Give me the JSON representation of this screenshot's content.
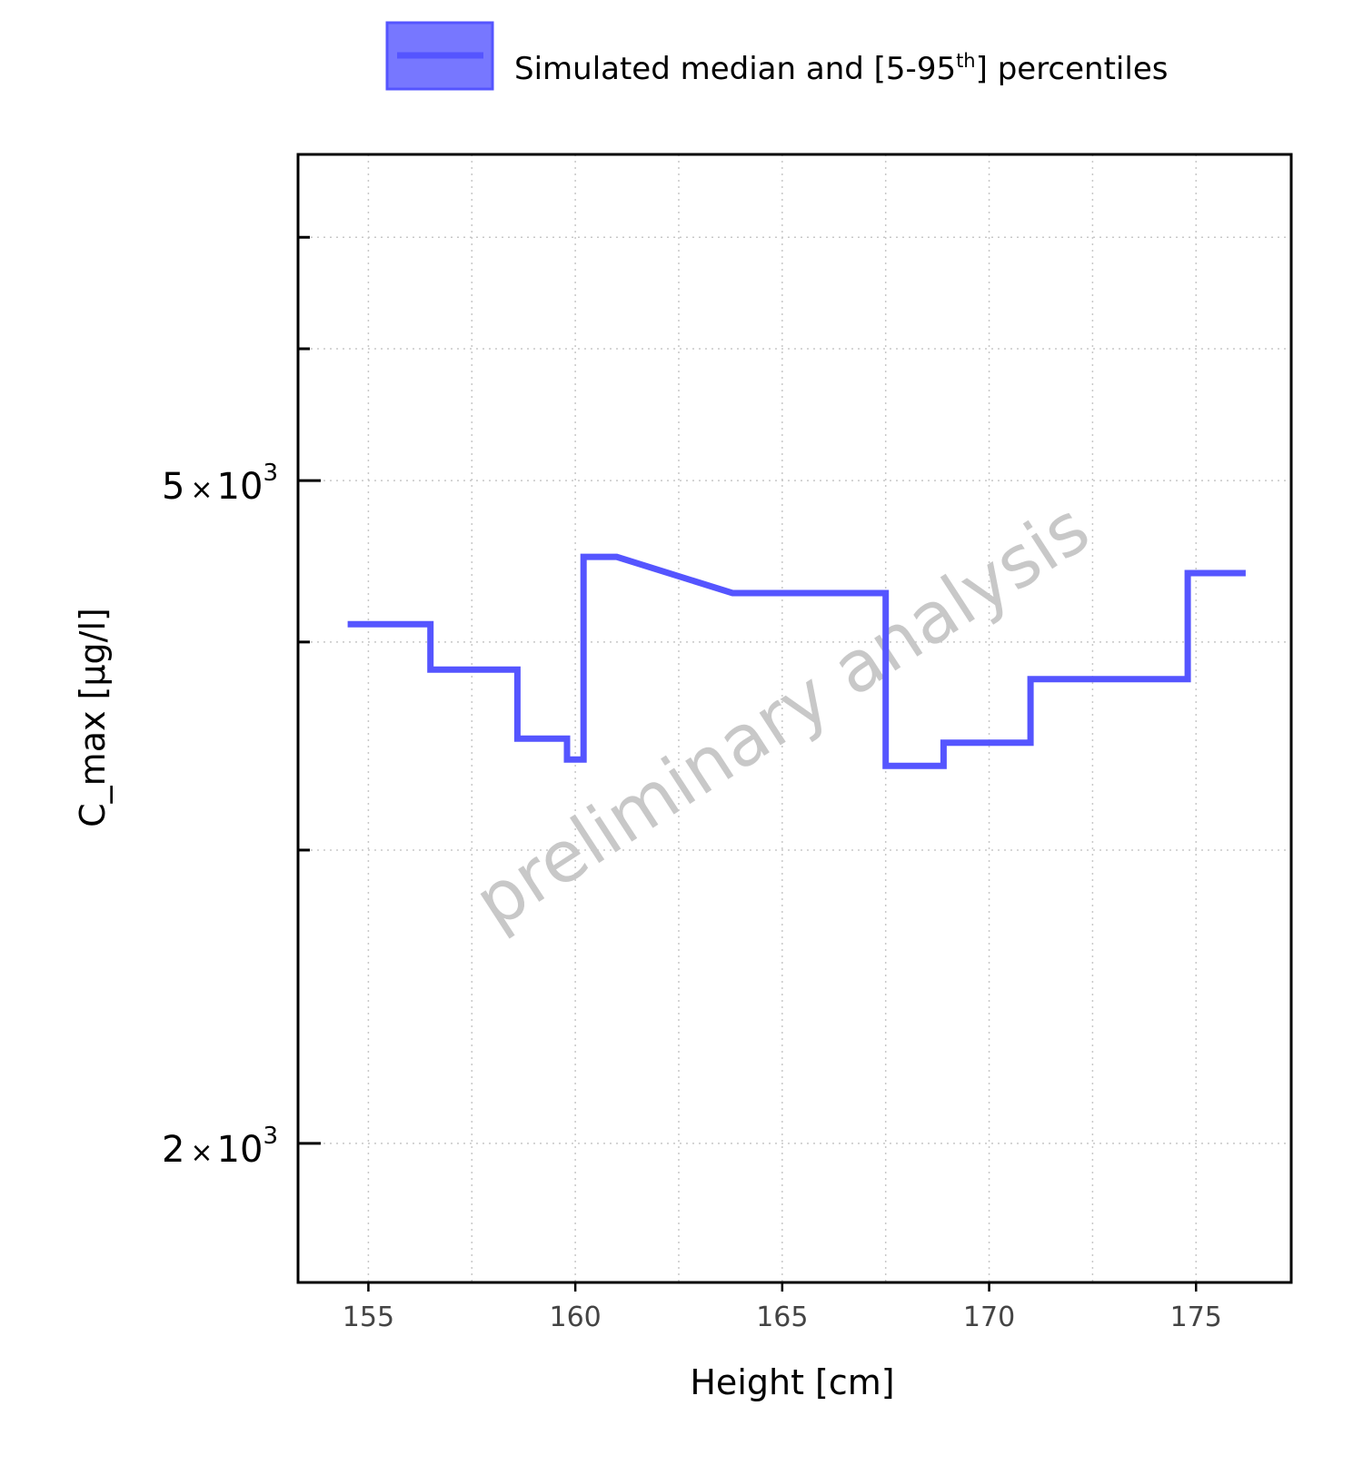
{
  "chart_data": {
    "type": "line",
    "xlabel": "Height [cm]",
    "ylabel": "C_max [µg/l]",
    "x_scale": "linear",
    "y_scale": "log",
    "xlim": [
      153.3,
      177.3
    ],
    "ylim": [
      1650,
      7850
    ],
    "x_ticks": [
      155,
      160,
      165,
      170,
      175
    ],
    "x_tick_labels": [
      "155",
      "160",
      "165",
      "170",
      "175"
    ],
    "y_major_ticks": [
      2000,
      5000
    ],
    "y_tick_labels": [
      {
        "mantissa": "5",
        "times": "×",
        "base": "10",
        "exponent": "3"
      },
      {
        "mantissa": "2",
        "times": "×",
        "base": "10",
        "exponent": "3"
      }
    ],
    "y_minor_ticks": [
      3000,
      4000,
      6000,
      7000
    ],
    "grid": true,
    "legend": {
      "position": "top",
      "label_main": "Simulated median and [5-95",
      "label_sup": "th",
      "label_end": "] percentiles"
    },
    "watermark": "preliminary analysis",
    "series": [
      {
        "name": "Simulated median and [5-95th] percentiles",
        "color": "#5555ff",
        "fill_color": "#7777ff",
        "x": [
          154.5,
          156.5,
          156.5,
          158.6,
          158.6,
          159.8,
          159.8,
          160.2,
          160.2,
          161.0,
          163.8,
          167.5,
          167.5,
          168.9,
          168.9,
          171.0,
          171.0,
          174.8,
          174.8,
          176.2
        ],
        "y": [
          4100,
          4100,
          3850,
          3850,
          3500,
          3500,
          3400,
          3400,
          4500,
          4500,
          4280,
          4280,
          3370,
          3370,
          3480,
          3480,
          3800,
          3800,
          4400,
          4400
        ]
      }
    ]
  }
}
